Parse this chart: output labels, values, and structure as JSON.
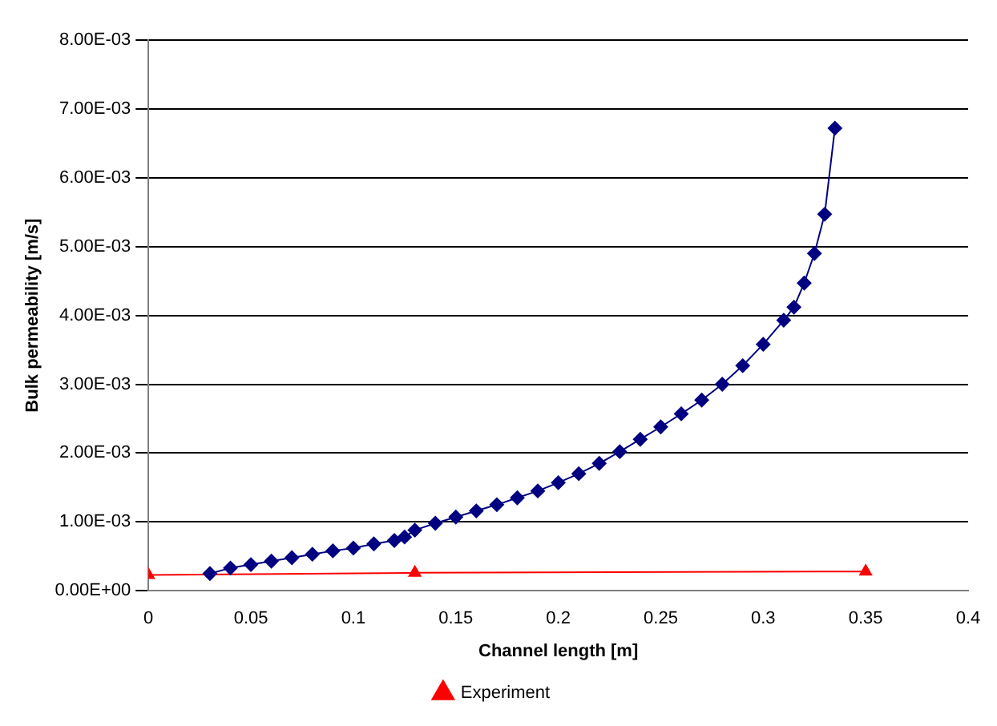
{
  "chart_data": {
    "type": "line",
    "xlabel": "Channel length [m]",
    "ylabel": "Bulk permeability [m/s]",
    "xlim": [
      0,
      0.4
    ],
    "xticks": [
      0,
      0.05,
      0.1,
      0.15,
      0.2,
      0.25,
      0.3,
      0.35,
      0.4
    ],
    "ylim": [
      0,
      0.008
    ],
    "yticks": [
      {
        "value": 0,
        "label": "0.00E+00"
      },
      {
        "value": 0.001,
        "label": "1.00E-03"
      },
      {
        "value": 0.002,
        "label": "2.00E-03"
      },
      {
        "value": 0.003,
        "label": "3.00E-03"
      },
      {
        "value": 0.004,
        "label": "4.00E-03"
      },
      {
        "value": 0.005,
        "label": "5.00E-03"
      },
      {
        "value": 0.006,
        "label": "6.00E-03"
      },
      {
        "value": 0.007,
        "label": "7.00E-03"
      },
      {
        "value": 0.008,
        "label": "8.00E-03"
      }
    ],
    "grid": "y",
    "legend": "bottom",
    "line_style": "solid",
    "series": [
      {
        "color": "#000080",
        "marker": "diamond",
        "x": [
          0.03,
          0.04,
          0.05,
          0.06,
          0.07,
          0.08,
          0.09,
          0.1,
          0.11,
          0.12,
          0.125,
          0.13,
          0.14,
          0.15,
          0.16,
          0.17,
          0.18,
          0.19,
          0.2,
          0.21,
          0.22,
          0.23,
          0.24,
          0.25,
          0.26,
          0.27,
          0.28,
          0.29,
          0.3,
          0.31,
          0.315,
          0.32,
          0.325,
          0.33,
          0.335
        ],
        "values": [
          0.00025,
          0.00033,
          0.00038,
          0.00043,
          0.00048,
          0.00053,
          0.00058,
          0.00062,
          0.00068,
          0.00073,
          0.00078,
          0.00088,
          0.00098,
          0.00107,
          0.00116,
          0.00125,
          0.00135,
          0.00145,
          0.00157,
          0.0017,
          0.00185,
          0.00202,
          0.0022,
          0.00238,
          0.00257,
          0.00277,
          0.003,
          0.00327,
          0.00358,
          0.00393,
          0.00412,
          0.00447,
          0.0049,
          0.00547,
          0.00672
        ]
      },
      {
        "name": "Experiment",
        "color": "#ff0000",
        "marker": "triangle",
        "x": [
          0,
          0.13,
          0.35
        ],
        "values": [
          0.00023,
          0.00026,
          0.00028
        ]
      }
    ]
  }
}
